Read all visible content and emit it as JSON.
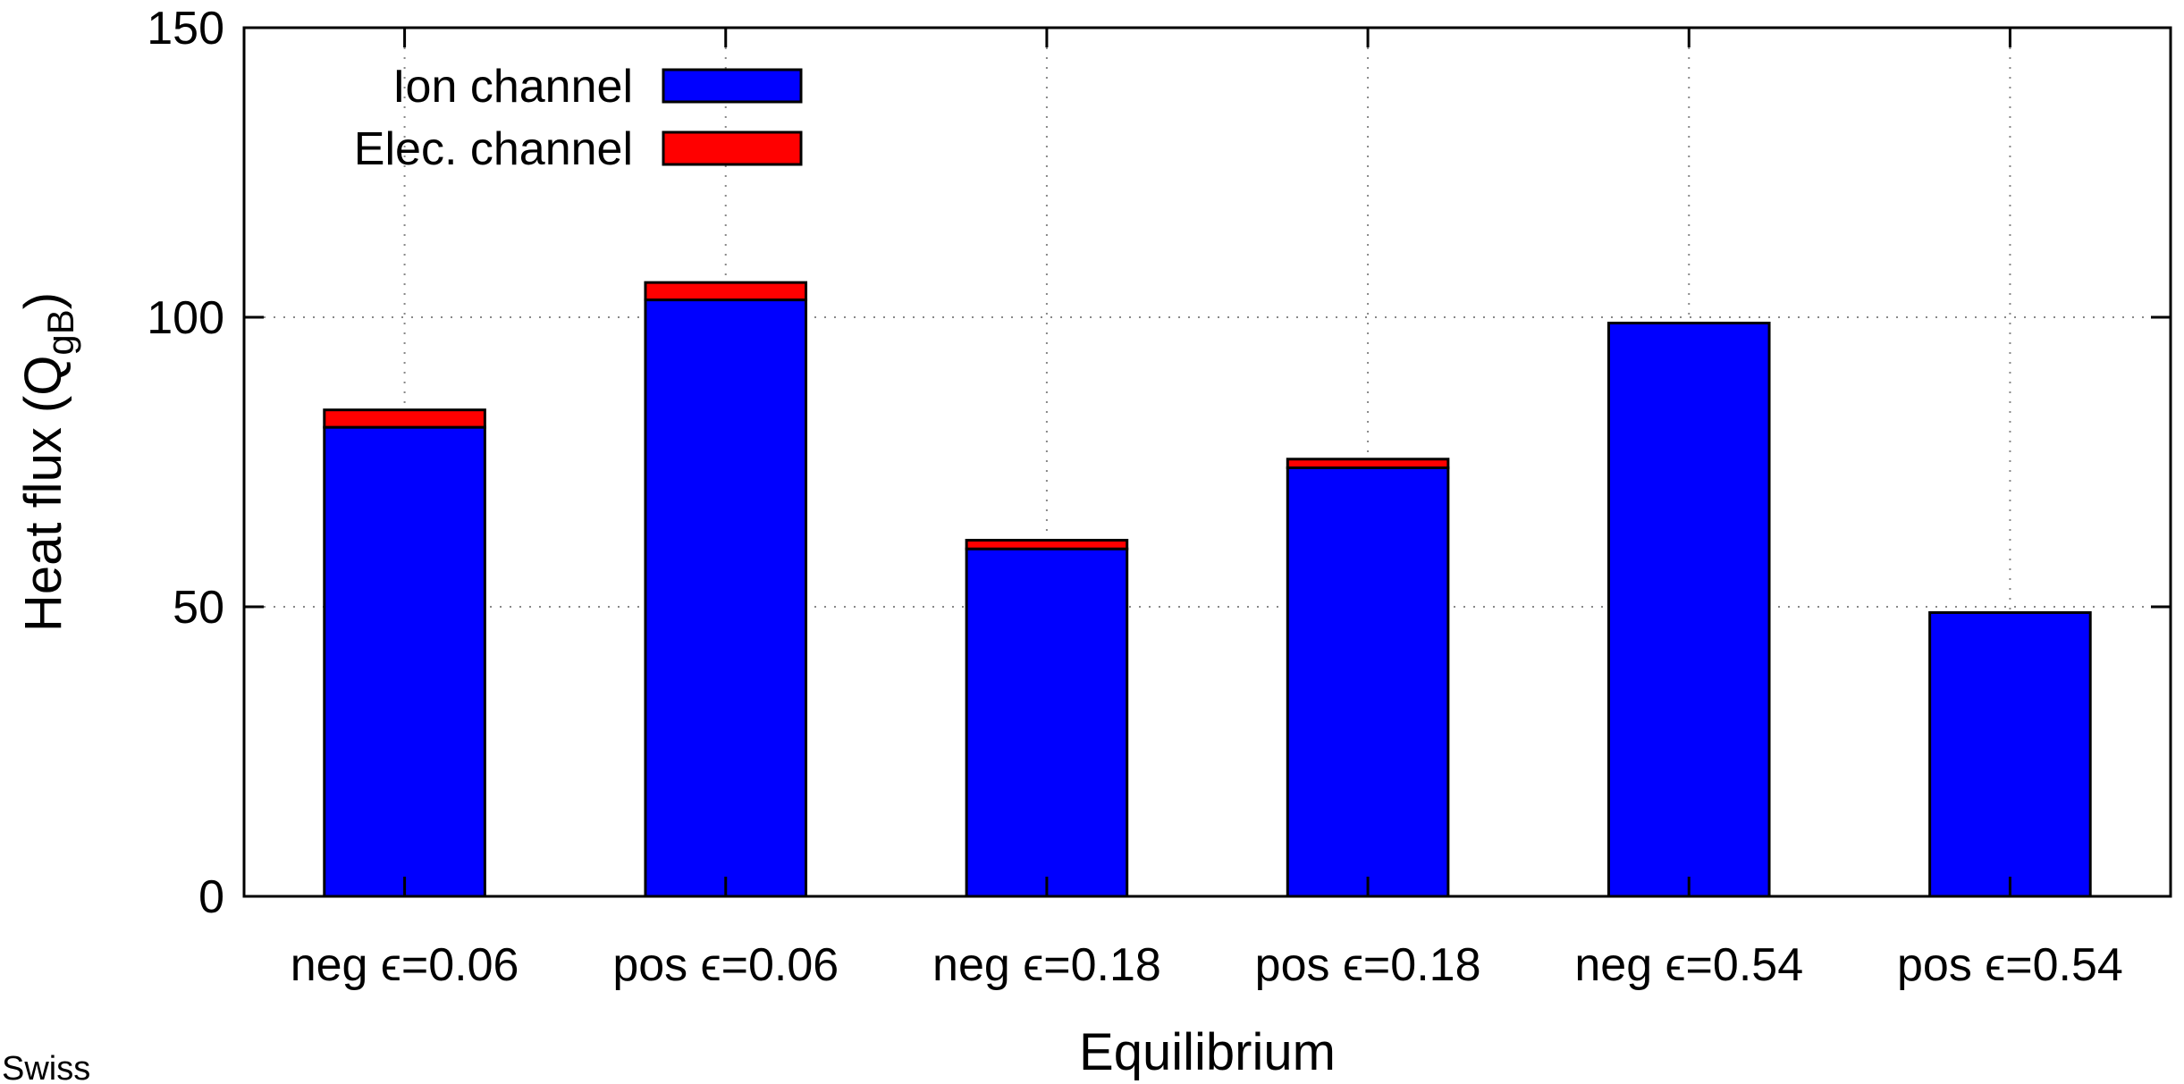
{
  "chart_data": {
    "type": "bar",
    "stacked": true,
    "title": "",
    "xlabel": "Equilibrium",
    "ylabel": "Heat flux (Q",
    "ylabel_subscript": "gB",
    "ylabel_suffix": ")",
    "ylim": [
      0,
      150
    ],
    "yticks": [
      0,
      50,
      100,
      150
    ],
    "grid": true,
    "legend_position": "top-left",
    "categories": [
      "neg ϵ=0.06",
      "pos ϵ=0.06",
      "neg ϵ=0.18",
      "pos ϵ=0.18",
      "neg ϵ=0.54",
      "pos ϵ=0.54"
    ],
    "series": [
      {
        "name": "Ion channel",
        "color": "#0000ff",
        "values": [
          81,
          103,
          60,
          74,
          99,
          49
        ]
      },
      {
        "name": "Elec. channel",
        "color": "#ff0000",
        "values": [
          3,
          3,
          1.5,
          1.5,
          0,
          0
        ]
      }
    ]
  },
  "corner_text": "Swiss"
}
